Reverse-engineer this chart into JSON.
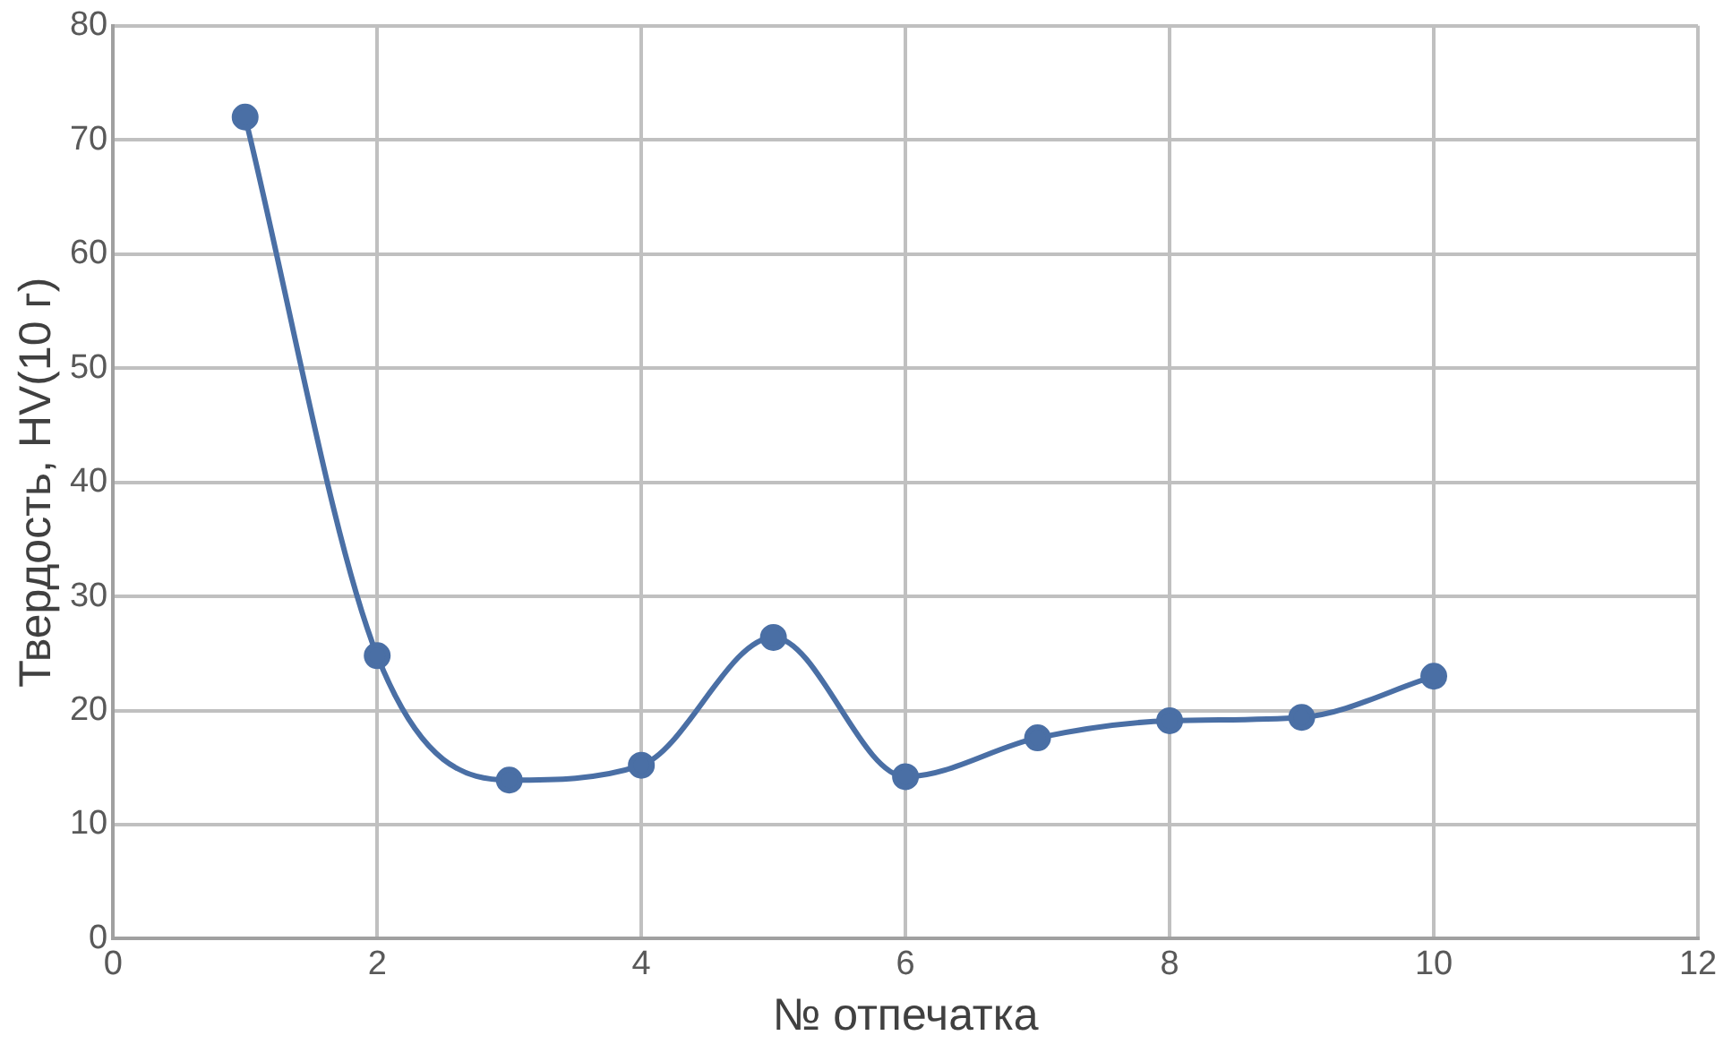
{
  "chart_data": {
    "type": "line",
    "xlabel": "№ отпечатка",
    "ylabel": "Твердость, HV(10 г)",
    "x": [
      1,
      2,
      3,
      4,
      5,
      6,
      7,
      8,
      9,
      10
    ],
    "series": [
      {
        "color": "#4a6fa5",
        "values": [
          72.0,
          24.8,
          13.9,
          15.2,
          26.4,
          14.2,
          17.6,
          19.1,
          19.4,
          23.0
        ]
      }
    ],
    "xlim": [
      0,
      12
    ],
    "xticks": [
      0,
      2,
      4,
      6,
      8,
      10,
      12
    ],
    "ylim": [
      0,
      80
    ],
    "yticks": [
      0,
      10,
      20,
      30,
      40,
      50,
      60,
      70,
      80
    ],
    "grid": true,
    "legend": false,
    "marker": "circle",
    "line_style": "solid"
  }
}
